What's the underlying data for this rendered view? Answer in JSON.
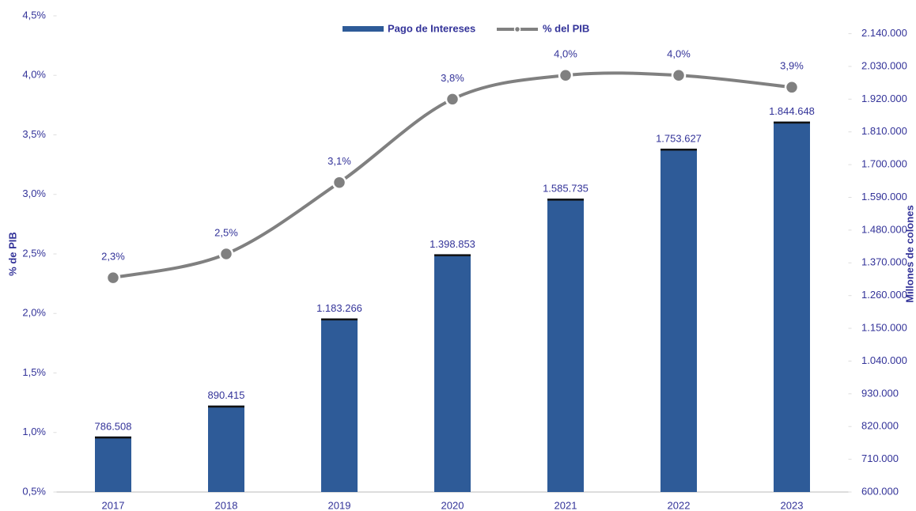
{
  "chart_data": {
    "type": "bar-line",
    "categories": [
      "2017",
      "2018",
      "2019",
      "2020",
      "2021",
      "2022",
      "2023"
    ],
    "series": [
      {
        "name": "Pago de Intereses",
        "color": "#2e5b98",
        "axis": "y2",
        "values": [
          786508,
          890415,
          1183266,
          1398853,
          1585735,
          1753627,
          1844648
        ],
        "value_labels": [
          "786.508",
          "890.415",
          "1.183.266",
          "1.398.853",
          "1.585.735",
          "1.753.627",
          "1.844.648"
        ]
      },
      {
        "name": "% del PIB",
        "color": "#808080",
        "axis": "y",
        "values": [
          2.3,
          2.5,
          3.1,
          3.8,
          4.0,
          4.0,
          3.9
        ],
        "value_labels": [
          "2,3%",
          "2,5%",
          "3,1%",
          "3,8%",
          "4,0%",
          "4,0%",
          "3,9%"
        ]
      }
    ],
    "ylabel": "% de PIB",
    "y2label": "Millones de colones",
    "ylim": [
      0.5,
      4.5
    ],
    "yticks": [
      {
        "value": 0.5,
        "label": "0,5%"
      },
      {
        "value": 1.0,
        "label": "1,0%"
      },
      {
        "value": 1.5,
        "label": "1,5%"
      },
      {
        "value": 2.0,
        "label": "2,0%"
      },
      {
        "value": 2.5,
        "label": "2,5%"
      },
      {
        "value": 3.0,
        "label": "3,0%"
      },
      {
        "value": 3.5,
        "label": "3,5%"
      },
      {
        "value": 4.0,
        "label": "4,0%"
      },
      {
        "value": 4.5,
        "label": "4,5%"
      }
    ],
    "y2lim": [
      600000,
      2200000
    ],
    "y2ticks": [
      {
        "value": 600000,
        "label": "600.000"
      },
      {
        "value": 710000,
        "label": "710.000"
      },
      {
        "value": 820000,
        "label": "820.000"
      },
      {
        "value": 930000,
        "label": "930.000"
      },
      {
        "value": 1040000,
        "label": "1.040.000"
      },
      {
        "value": 1150000,
        "label": "1.150.000"
      },
      {
        "value": 1260000,
        "label": "1.260.000"
      },
      {
        "value": 1370000,
        "label": "1.370.000"
      },
      {
        "value": 1480000,
        "label": "1.480.000"
      },
      {
        "value": 1590000,
        "label": "1.590.000"
      },
      {
        "value": 1700000,
        "label": "1.700.000"
      },
      {
        "value": 1810000,
        "label": "1.810.000"
      },
      {
        "value": 1920000,
        "label": "1.920.000"
      },
      {
        "value": 2030000,
        "label": "2.030.000"
      },
      {
        "value": 2140000,
        "label": "2.140.000"
      }
    ],
    "legend": "top"
  }
}
